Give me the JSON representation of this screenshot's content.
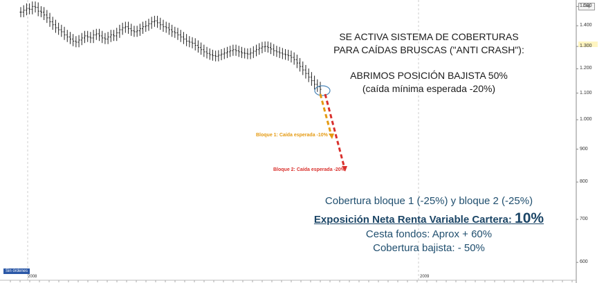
{
  "annotation": {
    "line1": "SE ACTIVA SISTEMA DE COBERTURAS",
    "line2": "PARA CAÍDAS BRUSCAS (\"ANTI CRASH\"):",
    "line3": "ABRIMOS POSICIÓN BAJISTA 50%",
    "line4": "(caída mínima esperada -20%)"
  },
  "blocks": {
    "block1_label": "Bloque 1: Caída esperada -10%",
    "block2_label": "Bloque 2: Caída esperada -20%",
    "block1_color": "#e59a11",
    "block2_color": "#d9302c"
  },
  "coverage": {
    "line1": "Cobertura bloque 1 (-25%) y bloque 2 (-25%)",
    "line2_prefix": "Exposición Neta Renta Variable Cartera:",
    "line2_value": "10%",
    "line3": "Cesta fondos: Aprox + 60%",
    "line4": "Cobertura bajista:    - 50%"
  },
  "badge": "Sin órdenes",
  "tag": "Log",
  "chart_data": {
    "type": "ohlc",
    "title": "",
    "xlabel": "",
    "ylabel": "",
    "x_ticks": [
      "2008",
      "2009"
    ],
    "y_ticks": [
      600,
      700,
      800,
      900,
      1000,
      1100,
      1200,
      1300,
      1400,
      1500
    ],
    "y_tick_labels": [
      "600",
      "700",
      "800",
      "900",
      "1.000",
      "1.100",
      "1.200",
      "1.300",
      "1.400",
      "1.500"
    ],
    "y_scale": "log",
    "ylim": [
      590,
      1520
    ],
    "grid": false,
    "closes": [
      1470,
      1480,
      1490,
      1485,
      1500,
      1495,
      1475,
      1470,
      1455,
      1440,
      1420,
      1405,
      1390,
      1380,
      1370,
      1355,
      1345,
      1335,
      1325,
      1320,
      1330,
      1340,
      1350,
      1345,
      1340,
      1355,
      1360,
      1350,
      1340,
      1335,
      1345,
      1355,
      1350,
      1365,
      1380,
      1390,
      1395,
      1385,
      1375,
      1370,
      1375,
      1385,
      1395,
      1400,
      1410,
      1420,
      1425,
      1415,
      1405,
      1395,
      1390,
      1380,
      1370,
      1365,
      1355,
      1345,
      1335,
      1325,
      1320,
      1315,
      1305,
      1295,
      1285,
      1275,
      1268,
      1262,
      1258,
      1255,
      1260,
      1265,
      1270,
      1275,
      1280,
      1285,
      1280,
      1275,
      1270,
      1268,
      1265,
      1270,
      1278,
      1285,
      1292,
      1298,
      1300,
      1295,
      1288,
      1280,
      1275,
      1270,
      1265,
      1262,
      1258,
      1250,
      1240,
      1225,
      1210,
      1195,
      1180,
      1165,
      1150,
      1135,
      1125,
      1115
    ]
  }
}
